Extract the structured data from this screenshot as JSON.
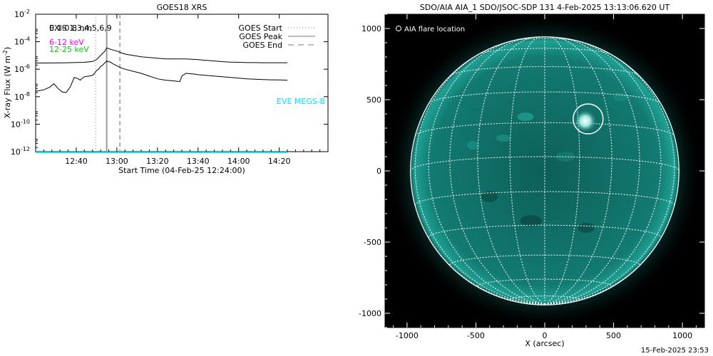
{
  "chart_data": [
    {
      "type": "line",
      "title": "GOES18 XRS",
      "xlabel": "Start Time (04-Feb-25 12:24:00)",
      "ylabel_main": "X-ray Flux (W m",
      "ylabel_exp": "-2",
      "ylabel_close": ")",
      "ylog": true,
      "yexp_range": [
        -12,
        -2
      ],
      "ytick_exps": [
        "-12",
        "-10",
        "-8",
        "-6",
        "-4",
        "-2"
      ],
      "ytick_base": "10",
      "xrange_min": [
        -4,
        140
      ],
      "xtick_labels": [
        "12:40",
        "13:00",
        "13:20",
        "13:40",
        "14:00",
        "14:20"
      ],
      "xtick_min": [
        16,
        36,
        56,
        76,
        96,
        116
      ],
      "legend_left": [
        {
          "text": "0.1-0.8 nm",
          "color": "#000000"
        },
        {
          "text": "EXIS 1,3,4,5,6,9",
          "color": "#000000"
        },
        {
          "text": "6-12 keV",
          "color": "#ee00ee"
        },
        {
          "text": "12-25 keV",
          "color": "#00cc00"
        }
      ],
      "legend_right": [
        {
          "text": "GOES Start",
          "style": "dotted"
        },
        {
          "text": "GOES Peak",
          "style": "solid"
        },
        {
          "text": "GOES End",
          "style": "dashed"
        }
      ],
      "eve_label": "EVE MEGS-B",
      "eve_color": "#00e5ee",
      "event_lines_min": {
        "start": 25.5,
        "peak": 31,
        "end": 37.5
      },
      "series": [
        {
          "color": "#000000",
          "x": [
            -4,
            0,
            10,
            20,
            24,
            26,
            28,
            30,
            31,
            32,
            34,
            36,
            38,
            40,
            44,
            48,
            52,
            56,
            60,
            64,
            70,
            76,
            80,
            84,
            88,
            92,
            96,
            100,
            104,
            108,
            112,
            116,
            120
          ],
          "y_exp": [
            -5.55,
            -5.55,
            -5.54,
            -5.5,
            -5.44,
            -5.3,
            -5.0,
            -4.7,
            -4.45,
            -4.5,
            -4.6,
            -4.68,
            -4.8,
            -4.9,
            -5.0,
            -5.1,
            -5.15,
            -5.2,
            -5.25,
            -5.25,
            -5.25,
            -5.3,
            -5.35,
            -5.4,
            -5.45,
            -5.48,
            -5.5,
            -5.52,
            -5.52,
            -5.53,
            -5.53,
            -5.53,
            -5.53
          ]
        },
        {
          "color": "#000000",
          "x": [
            -4,
            0,
            3,
            5,
            7,
            9,
            11,
            13,
            15,
            17,
            18,
            19,
            20,
            22,
            24,
            25,
            26,
            27,
            28,
            29,
            30,
            31,
            32,
            33,
            34,
            36,
            38,
            40,
            44,
            48,
            52,
            56,
            60,
            64,
            67,
            68,
            70,
            74,
            76,
            80,
            84,
            88,
            92,
            96,
            100,
            104,
            108,
            112,
            116,
            120
          ],
          "y_exp": [
            -7.6,
            -7.5,
            -7.3,
            -7.05,
            -7.4,
            -7.65,
            -7.7,
            -7.3,
            -6.6,
            -6.7,
            -6.8,
            -6.65,
            -6.55,
            -6.5,
            -6.45,
            -6.3,
            -6.1,
            -6.0,
            -5.8,
            -5.7,
            -5.55,
            -5.4,
            -5.45,
            -5.5,
            -5.6,
            -5.75,
            -5.9,
            -6.0,
            -6.15,
            -6.3,
            -6.5,
            -6.7,
            -6.8,
            -6.85,
            -6.9,
            -6.5,
            -6.3,
            -6.35,
            -6.4,
            -6.45,
            -6.5,
            -6.55,
            -6.6,
            -6.65,
            -6.7,
            -6.73,
            -6.75,
            -6.77,
            -6.78,
            -6.8
          ]
        },
        {
          "color": "#00e5ee",
          "x": [
            -4,
            120
          ],
          "y_exp": [
            -12.05,
            -12.05
          ]
        }
      ]
    },
    {
      "type": "image",
      "title": "SDO/AIA AIA_1 SDO/JSOC-SDP 131  4-Feb-2025 13:13:06.620 UT",
      "xlabel": "X (arcsec)",
      "legend_text": "AIA flare location",
      "xrange": [
        -1160,
        1160
      ],
      "yrange": [
        -1100,
        1100
      ],
      "ticks": [
        "-1000",
        "-500",
        "0",
        "500",
        "1000"
      ],
      "tick_values": [
        -1000,
        -500,
        0,
        500,
        1000
      ],
      "solar_radius_arcsec": 975,
      "disk_color": "#0e6e66",
      "flare_location_arcsec": [
        315,
        365
      ]
    }
  ],
  "footer": {
    "timestamp": "15-Feb-2025 23:53"
  }
}
